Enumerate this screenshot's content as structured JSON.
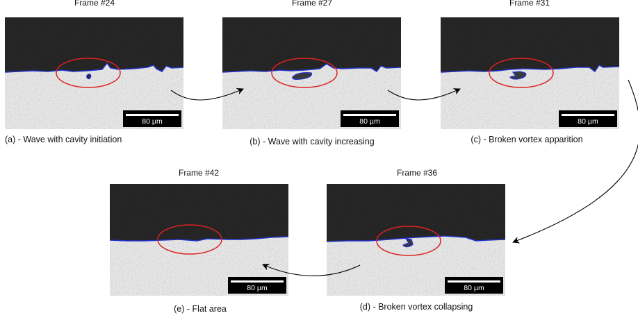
{
  "panels": [
    {
      "id": "a",
      "frame": "Frame #24",
      "caption": "(a) - Wave with cavity initiation",
      "scale": "80 µm"
    },
    {
      "id": "b",
      "frame": "Frame #27",
      "caption": "(b) - Wave with cavity increasing",
      "scale": "80 µm"
    },
    {
      "id": "c",
      "frame": "Frame #31",
      "caption": "(c) - Broken vortex apparition",
      "scale": "80 µm"
    },
    {
      "id": "d",
      "frame": "Frame #36",
      "caption": "(d) - Broken vortex collapsing",
      "scale": "80 µm"
    },
    {
      "id": "e",
      "frame": "Frame #42",
      "caption": "(e) - Flat area",
      "scale": "80 µm"
    }
  ],
  "colors": {
    "interface": "#2233cc",
    "highlight": "#dd2222",
    "dark_phase": "#1e1e1e",
    "light_phase": "#d4d4d4",
    "arrow": "#000000"
  }
}
